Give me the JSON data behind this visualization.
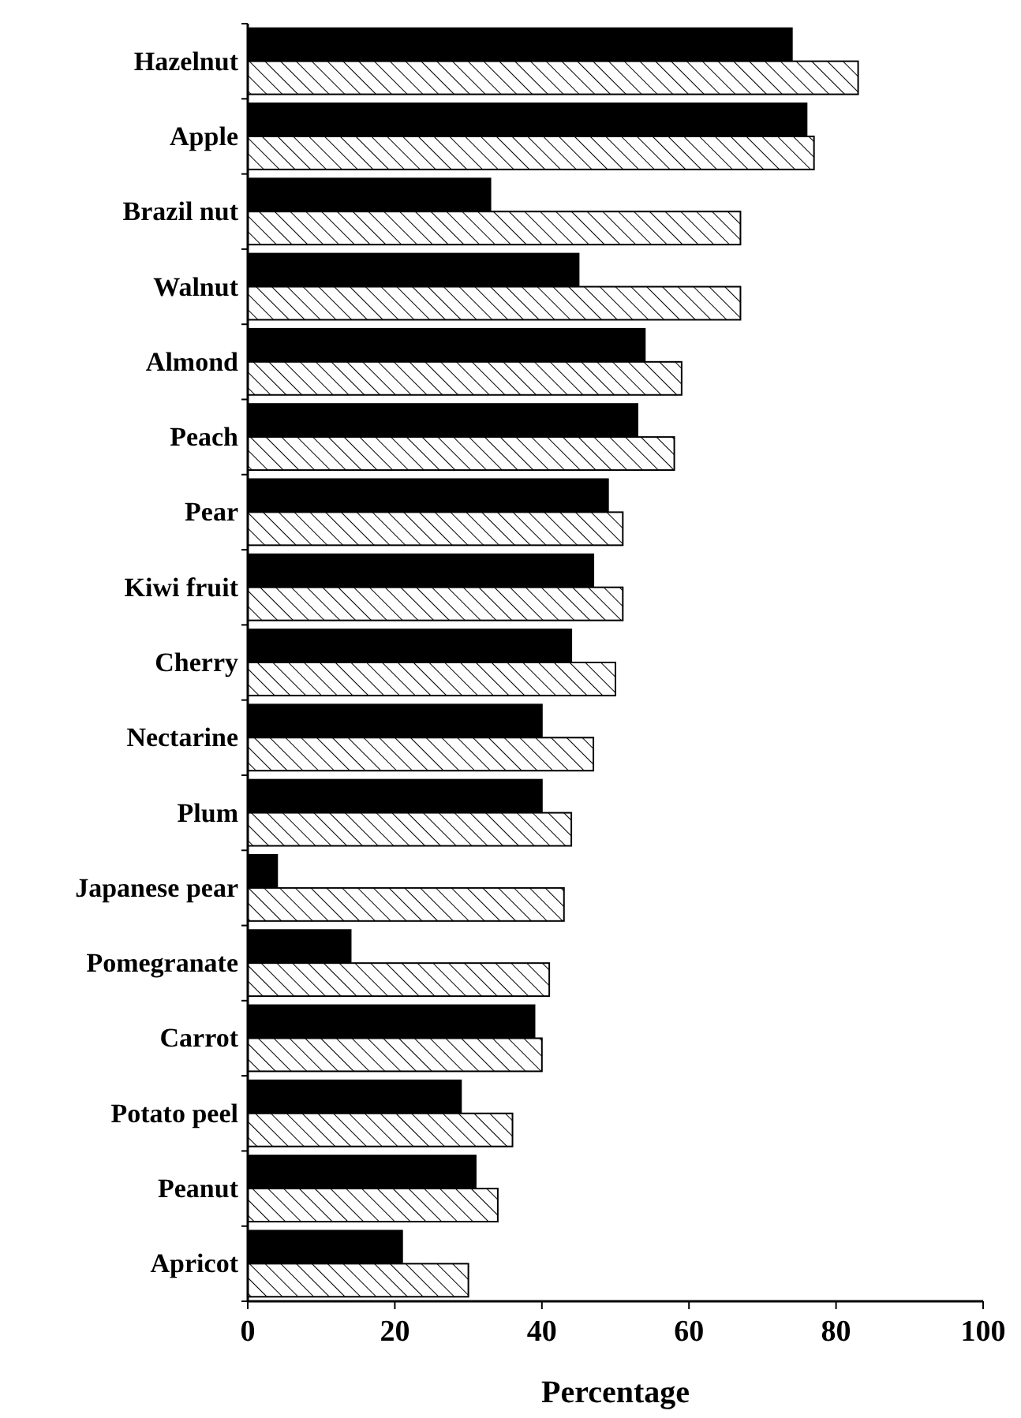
{
  "chart_data": {
    "type": "bar",
    "orientation": "horizontal",
    "xlabel": "Percentage",
    "categories": [
      "Hazelnut",
      "Apple",
      "Brazil nut",
      "Walnut",
      "Almond",
      "Peach",
      "Pear",
      "Kiwi fruit",
      "Cherry",
      "Nectarine",
      "Plum",
      "Japanese pear",
      "Pomegranate",
      "Carrot",
      "Potato peel",
      "Peanut",
      "Apricot"
    ],
    "series": [
      {
        "color": "#000000",
        "values": [
          74,
          76,
          33,
          45,
          54,
          53,
          49,
          47,
          44,
          40,
          40,
          4,
          14,
          39,
          29,
          31,
          21
        ]
      },
      {
        "color": "#000000",
        "values": [
          83,
          77,
          67,
          67,
          59,
          58,
          51,
          51,
          50,
          47,
          44,
          43,
          41,
          40,
          36,
          34,
          30
        ]
      }
    ],
    "xlim": [
      0,
      100
    ],
    "xticks": [
      0,
      20,
      40,
      60,
      80,
      100
    ],
    "grid": false
  }
}
